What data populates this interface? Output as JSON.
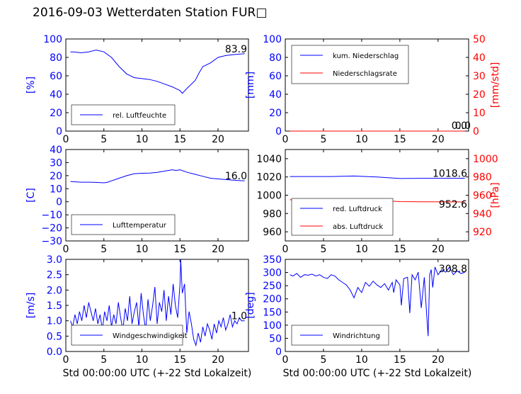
{
  "title": "2016-09-03 Wetterdaten Station FUR",
  "title_glyph": "□",
  "x_axis_label": "Std 00:00:00 UTC (+-22 Std Lokalzeit)",
  "colors": {
    "left_axis": "#0000ff",
    "right_axis": "#ff0000",
    "series_blue": "#0000ff",
    "series_red": "#ff0000",
    "series_light": "#8888ff"
  },
  "chart_data": [
    {
      "type": "line",
      "ylabel": "[%]",
      "xlim": [
        0,
        24
      ],
      "ylim": [
        0,
        100
      ],
      "x_ticks": [
        "0",
        "5",
        "10",
        "15",
        "20"
      ],
      "y_ticks": [
        "0",
        "20",
        "40",
        "60",
        "80",
        "100"
      ],
      "legend": "bottom-left",
      "latest_value": "83.9",
      "series": [
        {
          "name": "rel. Luftfeuchte",
          "color": "blue",
          "x": [
            0.6,
            1,
            2,
            3,
            4,
            5,
            6,
            7,
            8,
            9,
            10,
            11,
            12,
            13,
            14,
            15,
            15.3,
            16,
            17,
            17.5,
            18,
            19,
            20,
            21,
            22,
            23.5
          ],
          "y": [
            86,
            86,
            85,
            86,
            88,
            86,
            80,
            70,
            62,
            58,
            57,
            56,
            54,
            51,
            48,
            44,
            41,
            47,
            55,
            63,
            70,
            74,
            80,
            82,
            83,
            84
          ]
        }
      ]
    },
    {
      "type": "line",
      "ylabel": "[mm]",
      "ylabel_right": "[mm/std]",
      "xlim": [
        0,
        24
      ],
      "ylim": [
        0,
        100
      ],
      "ylim_right": [
        0,
        50
      ],
      "x_ticks": [
        "0",
        "5",
        "10",
        "15",
        "20"
      ],
      "y_ticks": [
        "0",
        "20",
        "40",
        "60",
        "80",
        "100"
      ],
      "y_ticks_right": [
        "0",
        "10",
        "20",
        "30",
        "40",
        "50"
      ],
      "legend": "top-left",
      "latest_value": "0.0",
      "latest_value_right": "0.0",
      "series": [
        {
          "name": "kum. Niederschlag",
          "color": "blue",
          "axis": "left",
          "x": [
            0.6,
            23.5
          ],
          "y": [
            0,
            0
          ]
        },
        {
          "name": "Niederschlagsrate",
          "color": "red",
          "axis": "right",
          "x": [
            0.6,
            23.5
          ],
          "y": [
            0,
            0
          ]
        }
      ]
    },
    {
      "type": "line",
      "ylabel": "[C]",
      "xlim": [
        0,
        24
      ],
      "ylim": [
        -30,
        40
      ],
      "x_ticks": [
        "0",
        "5",
        "10",
        "15",
        "20"
      ],
      "y_ticks": [
        "−30",
        "−20",
        "−10",
        "0",
        "10",
        "20",
        "30",
        "40"
      ],
      "legend": "bottom-left",
      "latest_value": "16.0",
      "series": [
        {
          "name": "Lufttemperatur",
          "color": "blue",
          "x": [
            0.6,
            2,
            3,
            4,
            5,
            5.5,
            6,
            7,
            8,
            9,
            10,
            11,
            12,
            13,
            14,
            14.5,
            15,
            16,
            17,
            18,
            19,
            20,
            21,
            22,
            23.5
          ],
          "y": [
            15.5,
            15,
            15,
            14.8,
            14.5,
            15,
            16,
            18,
            20,
            21.5,
            21.8,
            22,
            22.5,
            23.5,
            24.5,
            24,
            24.5,
            22.5,
            21,
            19.5,
            18,
            17.5,
            17,
            16.5,
            16
          ]
        }
      ]
    },
    {
      "type": "line",
      "ylabel_right": "[hPa]",
      "xlim": [
        0,
        24
      ],
      "ylim": [
        950,
        1050
      ],
      "ylim_right": [
        910,
        1010
      ],
      "x_ticks": [
        "0",
        "5",
        "10",
        "15",
        "20"
      ],
      "y_ticks": [
        "960",
        "980",
        "1000",
        "1020",
        "1040"
      ],
      "y_ticks_right": [
        "920",
        "940",
        "960",
        "980",
        "1000"
      ],
      "legend": "bottom-left",
      "latest_value": "1018.6",
      "latest_value_right": "952.6",
      "series": [
        {
          "name": "red. Luftdruck",
          "color": "blue",
          "axis": "left",
          "x": [
            0.6,
            3,
            6,
            9,
            12,
            15,
            18,
            21,
            23.5
          ],
          "y": [
            1020.5,
            1020.5,
            1020.5,
            1021,
            1020,
            1018.3,
            1018.5,
            1018.5,
            1018.6
          ]
        },
        {
          "name": "abs. Luftdruck",
          "color": "red",
          "axis": "right",
          "x": [
            0.6,
            3,
            6,
            9,
            12,
            15,
            18,
            21,
            23.5
          ],
          "y": [
            955,
            955,
            955,
            955.3,
            954.5,
            953,
            952.8,
            952.7,
            952.6
          ]
        }
      ]
    },
    {
      "type": "line",
      "ylabel": "[m/s]",
      "xlim": [
        0,
        24
      ],
      "ylim": [
        0,
        3
      ],
      "x_ticks": [
        "0",
        "5",
        "10",
        "15",
        "20"
      ],
      "y_ticks": [
        "0.0",
        "0.5",
        "1.0",
        "1.5",
        "2.0",
        "2.5",
        "3.0"
      ],
      "legend": "bottom-left",
      "latest_value": "1.0",
      "series": [
        {
          "name": "Windgeschwindigkeit",
          "color": "blue",
          "x": [
            0.6,
            0.9,
            1.2,
            1.5,
            1.8,
            2.1,
            2.4,
            2.7,
            3.0,
            3.3,
            3.6,
            3.9,
            4.2,
            4.5,
            4.8,
            5.1,
            5.4,
            5.7,
            6.0,
            6.3,
            6.6,
            6.9,
            7.2,
            7.5,
            7.8,
            8.1,
            8.4,
            8.7,
            9.0,
            9.3,
            9.6,
            9.9,
            10.2,
            10.5,
            10.8,
            11.1,
            11.4,
            11.7,
            12.0,
            12.3,
            12.6,
            12.9,
            13.2,
            13.5,
            13.8,
            14.1,
            14.4,
            14.7,
            15.0,
            15.1,
            15.3,
            15.6,
            15.9,
            16.2,
            16.5,
            16.8,
            17.1,
            17.4,
            17.7,
            18.0,
            18.3,
            18.6,
            18.9,
            19.2,
            19.5,
            19.8,
            20.1,
            20.4,
            20.7,
            21.0,
            21.3,
            21.6,
            21.9,
            22.2,
            22.5,
            22.8,
            23.1,
            23.5
          ],
          "y": [
            1.0,
            0.8,
            1.2,
            0.9,
            1.3,
            1.0,
            1.5,
            1.1,
            1.6,
            1.3,
            1.0,
            1.4,
            0.9,
            1.2,
            0.7,
            1.3,
            1.0,
            1.5,
            0.8,
            1.2,
            0.9,
            1.6,
            1.1,
            0.7,
            1.4,
            1.0,
            1.8,
            0.9,
            1.3,
            1.6,
            0.8,
            1.9,
            1.2,
            0.7,
            1.7,
            1.0,
            1.5,
            2.1,
            0.9,
            1.6,
            1.3,
            2.0,
            1.0,
            1.8,
            1.2,
            2.2,
            1.5,
            1.1,
            2.2,
            3.0,
            1.9,
            2.2,
            0.6,
            1.3,
            0.9,
            0.4,
            0.2,
            0.6,
            0.3,
            0.8,
            0.5,
            0.9,
            0.7,
            0.4,
            0.9,
            0.6,
            1.0,
            0.8,
            1.1,
            0.7,
            0.9,
            1.2,
            0.8,
            1.0,
            0.9,
            1.1,
            1.0,
            1.0
          ]
        }
      ]
    },
    {
      "type": "line",
      "ylabel": "[deg]",
      "xlim": [
        0,
        24
      ],
      "ylim": [
        0,
        360
      ],
      "x_ticks": [
        "0",
        "5",
        "10",
        "15",
        "20"
      ],
      "y_ticks": [
        "0",
        "50",
        "100",
        "150",
        "200",
        "250",
        "300",
        "350"
      ],
      "legend": "bottom-left",
      "latest_value": "308.8",
      "series": [
        {
          "name": "Windrichtung",
          "color": "blue",
          "x": [
            0.6,
            1,
            1.5,
            2,
            2.5,
            3,
            3.5,
            4,
            4.5,
            5,
            5.5,
            6,
            6.5,
            7,
            7.5,
            8,
            8.5,
            9,
            9.5,
            10,
            10.5,
            11,
            11.5,
            12,
            12.5,
            13,
            13.5,
            14,
            14.2,
            14.5,
            15,
            15.2,
            15.5,
            16,
            16.3,
            16.6,
            17,
            17.4,
            17.8,
            18.2,
            18.5,
            18.7,
            18.9,
            19.1,
            19.3,
            19.6,
            20,
            20.5,
            21,
            21.5,
            22,
            22.5,
            23,
            23.5
          ],
          "y": [
            300,
            295,
            305,
            290,
            300,
            298,
            302,
            295,
            300,
            290,
            285,
            300,
            295,
            280,
            270,
            260,
            240,
            210,
            250,
            230,
            270,
            255,
            275,
            260,
            250,
            265,
            240,
            270,
            230,
            280,
            260,
            180,
            285,
            290,
            150,
            300,
            280,
            310,
            170,
            290,
            150,
            60,
            300,
            320,
            250,
            330,
            300,
            320,
            310,
            330,
            300,
            315,
            305,
            309
          ]
        }
      ]
    }
  ]
}
